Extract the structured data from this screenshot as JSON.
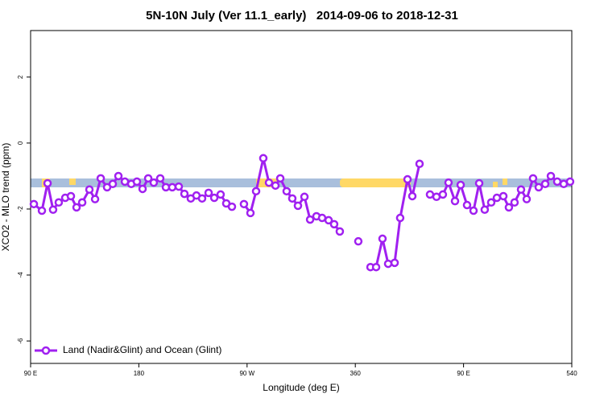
{
  "chart_data": {
    "type": "line",
    "title": "5N-10N July (Ver 11.1_early)   2014-09-06 to 2018-12-31",
    "x_label": "Longitude (deg E)",
    "y_label": "XCO2 - MLO trend (ppm)",
    "x": [
      92.7,
      99.4,
      104.1,
      108.7,
      113.4,
      118.8,
      123.5,
      128.2,
      132.9,
      138.9,
      143.6,
      148.3,
      153.6,
      158.3,
      163.0,
      168.4,
      173.7,
      178.4,
      183.1,
      187.8,
      192.4,
      197.8,
      202.5,
      207.8,
      213.2,
      217.9,
      223.2,
      227.9,
      232.6,
      238.0,
      242.7,
      248.0,
      252.7,
      257.4,
      262.0,
      267.4,
      272.8,
      277.5,
      283.5,
      288.2,
      293.6,
      297.6,
      302.9,
      307.6,
      312.3,
      317.7,
      322.4,
      327.7,
      332.4,
      337.8,
      342.4,
      347.1,
      354.5,
      362.5,
      367.0,
      372.6,
      377.3,
      382.6,
      387.3,
      392.7,
      397.3,
      403.4,
      407.4,
      413.4,
      417.4,
      422.1,
      427.5,
      432.8,
      437.5,
      442.9,
      447.6,
      452.9,
      458.3,
      463.0,
      467.6,
      473.0,
      477.7,
      483.1,
      487.7,
      492.4,
      497.8,
      502.5,
      507.8,
      512.5,
      517.9,
      522.6,
      527.9,
      533.3,
      538.6
    ],
    "series": [
      {
        "name": "Land (Nadir&Glint) and Ocean (Glint)",
        "color": "#a020f0",
        "values": [
          -1.85,
          -2.05,
          -1.22,
          -2.02,
          -1.8,
          -1.66,
          -1.61,
          -1.95,
          -1.8,
          -1.41,
          -1.7,
          -1.07,
          -1.34,
          -1.24,
          -1.0,
          -1.17,
          -1.24,
          -1.17,
          -1.39,
          -1.07,
          -1.2,
          -1.07,
          -1.34,
          -1.34,
          -1.32,
          -1.54,
          -1.68,
          -1.59,
          -1.68,
          -1.51,
          -1.66,
          -1.56,
          -1.83,
          -1.93,
          null,
          -1.85,
          -2.12,
          -1.46,
          -0.46,
          -1.2,
          -1.29,
          -1.07,
          -1.46,
          -1.68,
          -1.9,
          -1.63,
          -2.32,
          -2.22,
          -2.27,
          -2.34,
          -2.46,
          -2.68,
          null,
          -2.98,
          null,
          -3.76,
          -3.76,
          -2.9,
          -3.66,
          -3.63,
          -2.27,
          -1.1,
          -1.61,
          -0.63,
          null,
          -1.56,
          -1.63,
          -1.56,
          -1.2,
          -1.76,
          -1.27,
          -1.88,
          -2.05,
          -1.22,
          -2.02,
          -1.8,
          -1.66,
          -1.61,
          -1.95,
          -1.8,
          -1.41,
          -1.7,
          -1.07,
          -1.34,
          -1.24,
          -1.0,
          -1.17,
          -1.24,
          -1.17
        ]
      }
    ],
    "xlim": [
      90,
      540
    ],
    "xticks": [
      {
        "value": 90,
        "label": "90 E"
      },
      180,
      {
        "value": 270,
        "label": "90 W"
      },
      360,
      {
        "value": 450,
        "label": "90 E"
      },
      540
    ],
    "ylim": [
      -6.68,
      3.41
    ],
    "yticks": [
      -6,
      -4,
      -2,
      0,
      2
    ],
    "legend": "bottomleft"
  }
}
